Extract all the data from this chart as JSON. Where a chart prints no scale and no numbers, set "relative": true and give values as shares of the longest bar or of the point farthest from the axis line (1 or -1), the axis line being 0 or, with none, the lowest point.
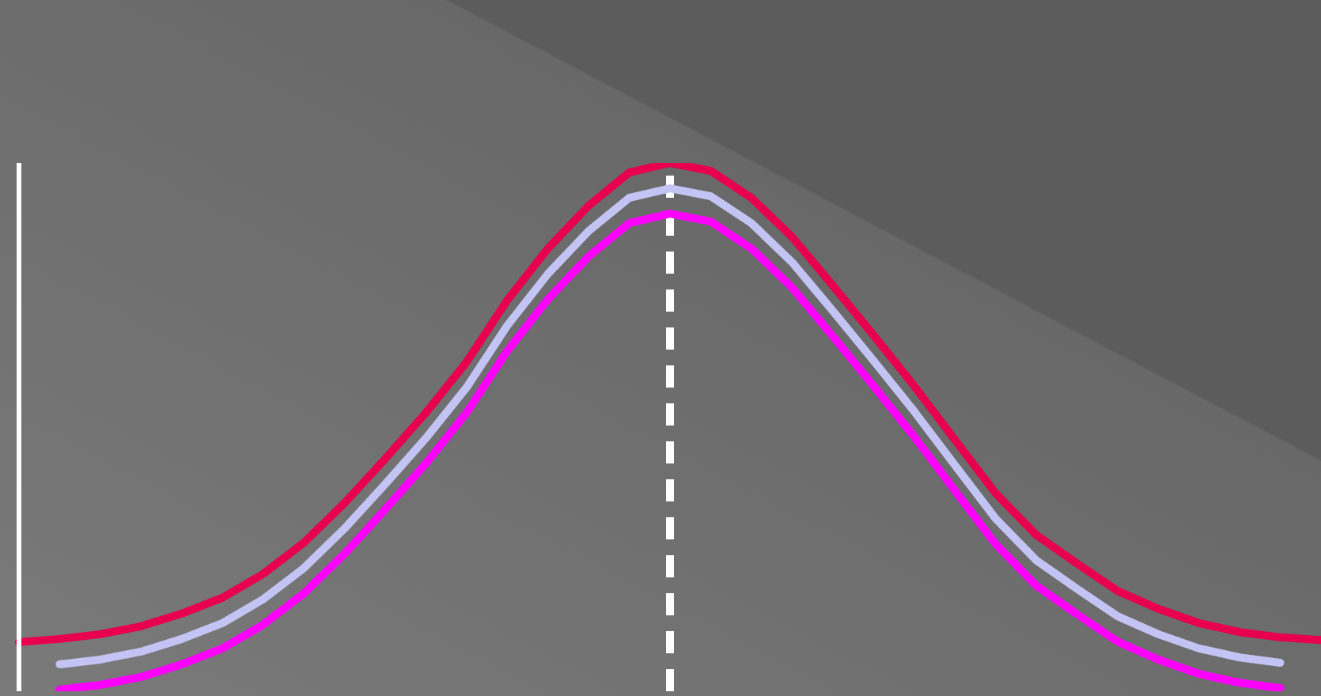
{
  "chart_data": {
    "type": "line",
    "relative": true,
    "grid": false,
    "legend": false,
    "marker": "none",
    "line_style": "solid",
    "categories": [
      null,
      null,
      null,
      null,
      null,
      null,
      null,
      null,
      null,
      null,
      null,
      null,
      null,
      null,
      null,
      null,
      null,
      null,
      null,
      null,
      null,
      null,
      null,
      null,
      null,
      null,
      null,
      null,
      null,
      null,
      null,
      null,
      null
    ],
    "series": [
      {
        "color": "#e8004f",
        "values": [
          0.093,
          0.099,
          0.108,
          0.123,
          0.147,
          0.177,
          0.222,
          0.281,
          0.356,
          0.44,
          0.527,
          0.623,
          0.74,
          0.838,
          0.919,
          0.982,
          1,
          0.985,
          0.934,
          0.86,
          0.768,
          0.674,
          0.578,
          0.476,
          0.375,
          0.296,
          0.242,
          0.19,
          0.156,
          0.129,
          0.112,
          0.102,
          0.097
        ]
      },
      {
        "color": "#c4c4f4",
        "values": [
          null,
          0.051,
          0.06,
          0.075,
          0.099,
          0.129,
          0.174,
          0.233,
          0.308,
          0.392,
          0.479,
          0.575,
          0.692,
          0.79,
          0.871,
          0.934,
          0.952,
          0.937,
          0.886,
          0.812,
          0.72,
          0.626,
          0.53,
          0.428,
          0.327,
          0.248,
          0.194,
          0.142,
          0.108,
          0.081,
          0.064,
          0.054,
          null
        ]
      },
      {
        "color": "#ff00ff",
        "values": [
          null,
          0.003,
          0.012,
          0.027,
          0.051,
          0.081,
          0.126,
          0.185,
          0.26,
          0.344,
          0.431,
          0.527,
          0.644,
          0.742,
          0.823,
          0.886,
          0.904,
          0.889,
          0.838,
          0.764,
          0.672,
          0.578,
          0.482,
          0.38,
          0.279,
          0.2,
          0.146,
          0.094,
          0.06,
          0.033,
          0.016,
          0.006,
          null
        ]
      }
    ]
  }
}
